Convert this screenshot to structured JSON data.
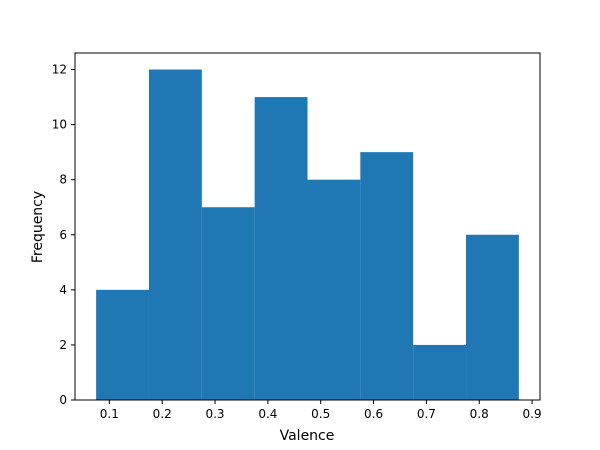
{
  "chart_data": {
    "type": "histogram",
    "x_label": "Valence",
    "y_label": "Frequency",
    "bins": [
      0.075,
      0.175,
      0.275,
      0.375,
      0.475,
      0.575,
      0.675,
      0.775,
      0.875
    ],
    "values": [
      4,
      12,
      7,
      11,
      8,
      9,
      2,
      6
    ],
    "color": "#1f77b4",
    "xlim": [
      0.035,
      0.915
    ],
    "xticks": [
      0.1,
      0.2,
      0.3,
      0.4,
      0.5,
      0.6,
      0.7,
      0.8,
      0.9
    ],
    "ylim": [
      0,
      12.6
    ],
    "yticks": [
      0,
      2,
      4,
      6,
      8,
      10,
      12
    ],
    "grid": false
  }
}
